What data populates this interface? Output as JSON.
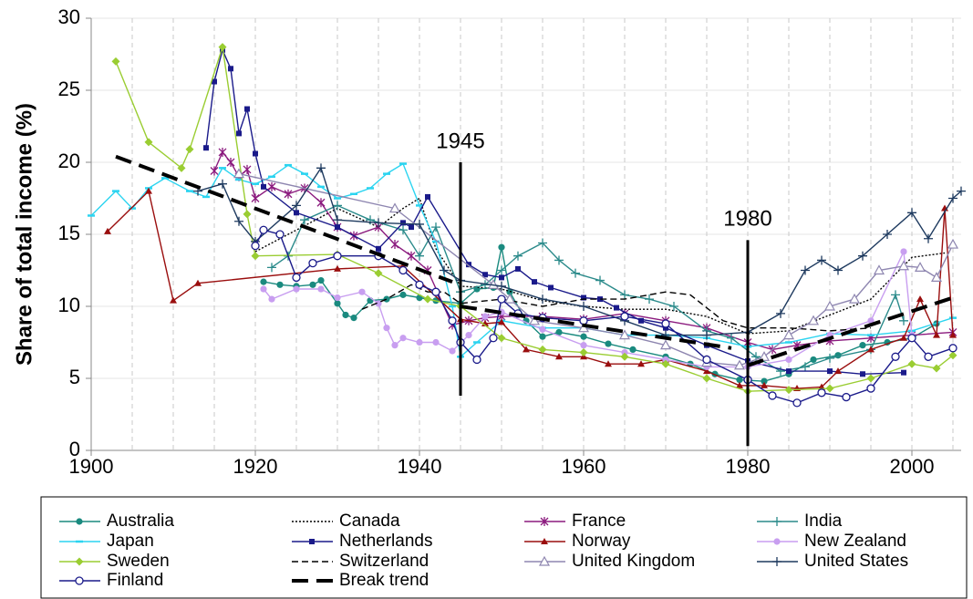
{
  "chart_data": {
    "type": "line",
    "ylabel": "Share of total income (%)",
    "xlim": [
      1900,
      2006
    ],
    "ylim": [
      0,
      30
    ],
    "xticks": [
      1900,
      1920,
      1940,
      1960,
      1980,
      2000
    ],
    "yticks": [
      0,
      5,
      10,
      15,
      20,
      25,
      30
    ],
    "xgrid": [
      1905,
      1910,
      1915,
      1920,
      1925,
      1930,
      1935,
      1940,
      1945,
      1950,
      1955,
      1960,
      1965,
      1970,
      1975,
      1980,
      1985,
      1990,
      1995,
      2000,
      2005
    ],
    "grid": true,
    "annotations": [
      {
        "text": "1945",
        "x": 1945,
        "y": [
          3.8,
          20
        ]
      },
      {
        "text": "1980",
        "x": 1980,
        "y": [
          0.3,
          14.6
        ]
      }
    ],
    "series": [
      {
        "name": "Australia",
        "color": "#1a8a7f",
        "marker": "circle",
        "style": "solid",
        "x": [
          1921,
          1923,
          1925,
          1927,
          1928,
          1930,
          1931,
          1932,
          1934,
          1936,
          1938,
          1940,
          1942,
          1945,
          1947,
          1949,
          1950,
          1951,
          1953,
          1955,
          1957,
          1960,
          1963,
          1966,
          1970,
          1973,
          1976,
          1979,
          1982,
          1985,
          1988,
          1991,
          1994,
          1997,
          2000,
          2003
        ],
        "values": [
          11.7,
          11.5,
          11.4,
          11.5,
          11.8,
          10.2,
          9.4,
          9.2,
          10.4,
          10.5,
          10.8,
          10.6,
          10.4,
          10.2,
          11.2,
          11.3,
          14.1,
          11.0,
          9.0,
          7.9,
          8.2,
          7.9,
          7.4,
          7.0,
          6.5,
          6.0,
          5.3,
          4.9,
          4.8,
          5.3,
          6.3,
          6.6,
          7.3,
          7.5,
          7.8,
          8.8
        ]
      },
      {
        "name": "Canada",
        "color": "#000000",
        "marker": "none",
        "style": "dotted",
        "x": [
          1920,
          1925,
          1930,
          1935,
          1938,
          1940,
          1942,
          1945,
          1950,
          1955,
          1960,
          1965,
          1970,
          1975,
          1980,
          1985,
          1990,
          1995,
          2000,
          2004
        ],
        "values": [
          13.8,
          15.3,
          16.8,
          15.5,
          16.8,
          17.5,
          14.0,
          11.4,
          11.2,
          10.4,
          10.0,
          9.8,
          9.8,
          9.3,
          8.1,
          8.3,
          9.4,
          10.5,
          13.4,
          13.7
        ]
      },
      {
        "name": "France",
        "color": "#8b1a7e",
        "marker": "star",
        "style": "solid",
        "x": [
          1915,
          1916,
          1917,
          1918,
          1919,
          1920,
          1922,
          1924,
          1926,
          1928,
          1930,
          1932,
          1935,
          1937,
          1939,
          1941,
          1944,
          1946,
          1948,
          1950,
          1955,
          1960,
          1965,
          1970,
          1975,
          1980,
          1983,
          1986,
          1990,
          1995,
          2000,
          2005
        ],
        "values": [
          19.4,
          20.7,
          20.0,
          19.0,
          19.5,
          17.5,
          18.3,
          17.8,
          18.2,
          17.2,
          15.5,
          14.9,
          15.5,
          14.3,
          13.5,
          12.5,
          8.7,
          9.0,
          9.2,
          9.3,
          9.3,
          9.1,
          9.5,
          9.0,
          8.5,
          7.5,
          7.0,
          7.3,
          7.6,
          7.8,
          8.0,
          8.2
        ]
      },
      {
        "name": "India",
        "color": "#2a8a8a",
        "marker": "plus",
        "style": "solid",
        "x": [
          1922,
          1924,
          1926,
          1930,
          1934,
          1938,
          1940,
          1942,
          1945,
          1948,
          1950,
          1952,
          1955,
          1957,
          1959,
          1962,
          1965,
          1968,
          1971,
          1975,
          1978,
          1981,
          1984,
          1987,
          1990,
          1995,
          1998,
          1999
        ],
        "values": [
          12.7,
          13.5,
          16.0,
          17.0,
          16.0,
          15.3,
          13.5,
          15.5,
          11.0,
          11.5,
          12.5,
          13.5,
          14.4,
          13.2,
          12.3,
          11.8,
          10.8,
          10.5,
          10.0,
          8.3,
          7.8,
          6.5,
          5.5,
          5.8,
          6.4,
          7.0,
          10.8,
          9.0
        ]
      },
      {
        "name": "Japan",
        "color": "#2bd4f0",
        "marker": "dash",
        "style": "solid",
        "x": [
          1900,
          1903,
          1905,
          1907,
          1909,
          1912,
          1914,
          1916,
          1918,
          1920,
          1922,
          1924,
          1926,
          1928,
          1930,
          1932,
          1934,
          1936,
          1938,
          1940,
          1942,
          1944,
          1945,
          1947,
          1950,
          1955,
          1960,
          1965,
          1970,
          1975,
          1980,
          1985,
          1990,
          1995,
          2000,
          2005
        ],
        "values": [
          16.3,
          18.0,
          16.8,
          18.2,
          18.9,
          18.0,
          17.6,
          19.6,
          18.8,
          18.5,
          19.0,
          19.8,
          19.2,
          18.3,
          17.5,
          17.8,
          18.2,
          19.2,
          19.9,
          17.0,
          14.5,
          10.0,
          6.5,
          7.5,
          9.0,
          8.5,
          8.5,
          8.0,
          8.0,
          7.8,
          7.2,
          7.5,
          8.1,
          8.0,
          8.3,
          9.2
        ]
      },
      {
        "name": "Netherlands",
        "color": "#1a1a8a",
        "marker": "square",
        "style": "solid",
        "x": [
          1914,
          1915,
          1916,
          1917,
          1918,
          1919,
          1920,
          1921,
          1925,
          1930,
          1935,
          1938,
          1939,
          1941,
          1946,
          1948,
          1950,
          1952,
          1954,
          1956,
          1960,
          1962,
          1964,
          1967,
          1970,
          1975,
          1980,
          1985,
          1990,
          1994,
          1999
        ],
        "values": [
          21.0,
          25.6,
          27.8,
          26.5,
          22.0,
          23.7,
          20.6,
          18.3,
          16.5,
          15.5,
          14.0,
          15.8,
          15.5,
          17.6,
          12.9,
          12.2,
          12.0,
          12.6,
          11.7,
          11.3,
          10.6,
          10.5,
          9.9,
          9.0,
          8.5,
          7.3,
          6.2,
          5.5,
          5.5,
          5.3,
          5.4
        ]
      },
      {
        "name": "Norway",
        "color": "#9a0e0e",
        "marker": "triangle",
        "style": "solid",
        "x": [
          1902,
          1907,
          1910,
          1913,
          1930,
          1938,
          1945,
          1948,
          1950,
          1953,
          1957,
          1960,
          1963,
          1967,
          1970,
          1975,
          1979,
          1982,
          1986,
          1989,
          1991,
          1995,
          1999,
          2001,
          2003,
          2004,
          2005
        ],
        "values": [
          15.2,
          18.0,
          10.4,
          11.6,
          12.6,
          12.8,
          9.1,
          8.8,
          8.9,
          7.0,
          6.5,
          6.5,
          6.0,
          6.0,
          6.3,
          5.5,
          4.5,
          4.5,
          4.3,
          4.4,
          5.5,
          7.0,
          7.8,
          10.5,
          8.0,
          16.8,
          8.0
        ]
      },
      {
        "name": "New Zealand",
        "color": "#c89ef0",
        "marker": "circle",
        "style": "solid",
        "x": [
          1921,
          1922,
          1925,
          1928,
          1930,
          1933,
          1935,
          1936,
          1937,
          1938,
          1940,
          1942,
          1944,
          1946,
          1948,
          1950,
          1955,
          1960,
          1965,
          1970,
          1975,
          1980,
          1985,
          1990,
          1995,
          1999,
          2000
        ],
        "values": [
          11.2,
          10.5,
          11.2,
          11.2,
          10.6,
          11.0,
          10.2,
          8.5,
          7.3,
          7.8,
          7.5,
          7.5,
          6.9,
          8.0,
          9.3,
          9.6,
          8.4,
          7.3,
          6.8,
          6.3,
          5.8,
          5.8,
          6.3,
          8.0,
          9.0,
          13.8,
          8.0
        ]
      },
      {
        "name": "Sweden",
        "color": "#9acd32",
        "marker": "diamond",
        "style": "solid",
        "x": [
          1903,
          1907,
          1911,
          1912,
          1916,
          1919,
          1920,
          1930,
          1935,
          1941,
          1945,
          1950,
          1955,
          1960,
          1965,
          1970,
          1975,
          1980,
          1985,
          1990,
          1995,
          2000,
          2003,
          2005
        ],
        "values": [
          27.0,
          21.4,
          19.6,
          20.9,
          28.0,
          16.4,
          13.5,
          13.6,
          12.3,
          10.5,
          10.0,
          7.8,
          7.0,
          6.8,
          6.5,
          6.0,
          5.0,
          4.1,
          4.2,
          4.3,
          5.0,
          6.0,
          5.7,
          6.6
        ]
      },
      {
        "name": "Switzerland",
        "color": "#000000",
        "marker": "none",
        "style": "dashed",
        "x": [
          1933,
          1936,
          1939,
          1941,
          1943,
          1945,
          1950,
          1955,
          1960,
          1965,
          1970,
          1973,
          1977,
          1980,
          1985,
          1990,
          1995
        ],
        "values": [
          9.8,
          10.5,
          11.5,
          11.0,
          11.0,
          10.2,
          10.5,
          10.0,
          10.5,
          10.5,
          11.0,
          10.8,
          9.0,
          8.5,
          8.5,
          8.3,
          8.5
        ]
      },
      {
        "name": "United Kingdom",
        "color": "#8e86b0",
        "marker": "triangle-open",
        "style": "solid",
        "x": [
          1918,
          1937,
          1949,
          1951,
          1954,
          1960,
          1965,
          1970,
          1975,
          1979,
          1982,
          1985,
          1988,
          1990,
          1993,
          1996,
          1999,
          2001,
          2003,
          2005
        ],
        "values": [
          19.2,
          16.8,
          11.5,
          10.5,
          9.0,
          8.5,
          8.0,
          7.3,
          6.1,
          5.9,
          6.5,
          8.0,
          9.0,
          10.0,
          10.5,
          12.5,
          12.8,
          12.7,
          12.0,
          14.3
        ]
      },
      {
        "name": "United States",
        "color": "#1e3a5f",
        "marker": "plus",
        "style": "solid",
        "x": [
          1913,
          1916,
          1918,
          1920,
          1925,
          1928,
          1930,
          1935,
          1940,
          1943,
          1945,
          1950,
          1955,
          1960,
          1965,
          1970,
          1975,
          1980,
          1984,
          1987,
          1989,
          1991,
          1994,
          1997,
          2000,
          2002,
          2005,
          2006
        ],
        "values": [
          18.0,
          18.5,
          15.9,
          14.5,
          17.0,
          19.6,
          16.0,
          15.8,
          15.7,
          12.5,
          11.8,
          11.4,
          10.5,
          10.0,
          9.0,
          8.0,
          8.0,
          8.2,
          9.5,
          12.5,
          13.2,
          12.5,
          13.5,
          15.0,
          16.5,
          14.7,
          17.5,
          18.0
        ]
      },
      {
        "name": "Finland",
        "color": "#1a1a8a",
        "marker": "circle-open",
        "style": "solid",
        "x": [
          1920,
          1921,
          1923,
          1925,
          1927,
          1930,
          1935,
          1938,
          1940,
          1942,
          1944,
          1945,
          1947,
          1949,
          1950,
          1952,
          1955,
          1960,
          1965,
          1970,
          1975,
          1980,
          1983,
          1986,
          1989,
          1992,
          1995,
          1998,
          2000,
          2002,
          2005
        ],
        "values": [
          14.2,
          15.3,
          15.0,
          12.0,
          13.0,
          13.5,
          13.5,
          12.5,
          11.5,
          11.0,
          9.0,
          7.5,
          6.3,
          7.8,
          10.5,
          9.5,
          9.2,
          9.0,
          9.3,
          8.8,
          6.3,
          4.9,
          3.8,
          3.3,
          4.0,
          3.7,
          4.3,
          6.5,
          7.8,
          6.5,
          7.1
        ]
      },
      {
        "name": "Break trend",
        "color": "#000000",
        "marker": "none",
        "style": "thick-dash",
        "x": [
          1903,
          1944,
          1945,
          1945,
          1978,
          1980,
          1980,
          2005
        ],
        "values": [
          20.4,
          11.7,
          null,
          10.0,
          7.1,
          null,
          5.9,
          10.6
        ]
      }
    ]
  }
}
